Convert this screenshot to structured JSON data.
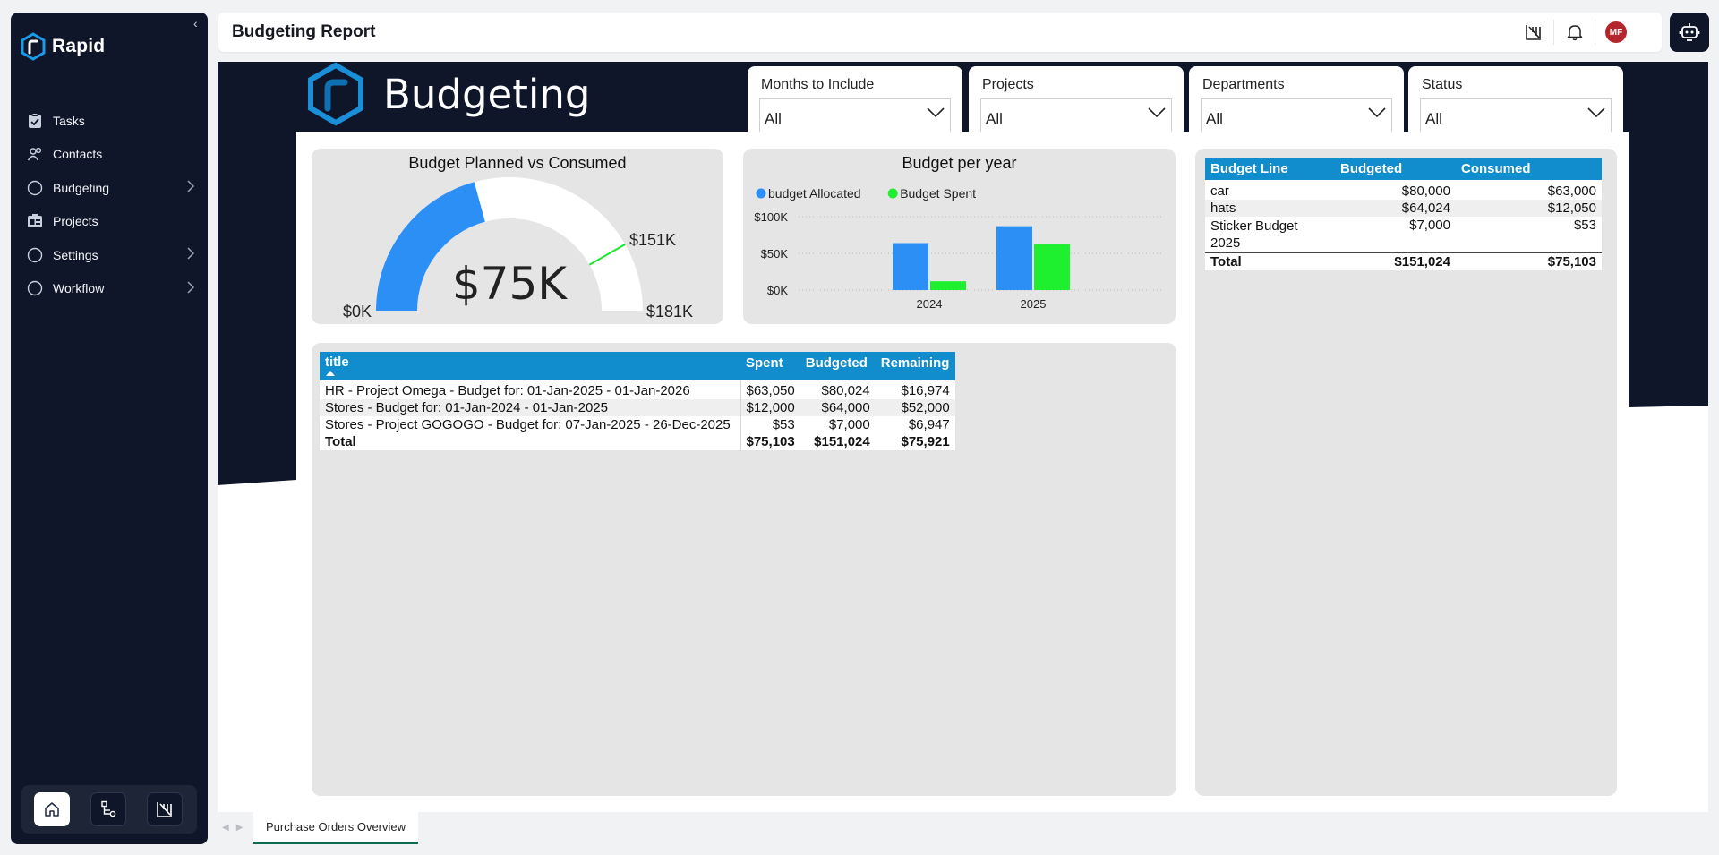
{
  "app": {
    "brand": "Rapid"
  },
  "sidebar": {
    "items": [
      {
        "label": "Tasks",
        "icon": "clipboard-icon",
        "chevron": false
      },
      {
        "label": "Contacts",
        "icon": "people-icon",
        "chevron": false
      },
      {
        "label": "Budgeting",
        "icon": "circle-icon",
        "chevron": true
      },
      {
        "label": "Projects",
        "icon": "projects-icon",
        "chevron": false
      },
      {
        "label": "Settings",
        "icon": "circle-icon",
        "chevron": true
      },
      {
        "label": "Workflow",
        "icon": "circle-icon",
        "chevron": true
      }
    ],
    "dock": [
      "home-icon",
      "flow-icon",
      "report-icon"
    ]
  },
  "header": {
    "title": "Budgeting Report",
    "avatar_initials": "MF"
  },
  "report": {
    "heading": "Budgeting",
    "slicers": [
      {
        "label": "Months to Include",
        "value": "All"
      },
      {
        "label": "Projects",
        "value": "All"
      },
      {
        "label": "Departments",
        "value": "All"
      },
      {
        "label": "Status",
        "value": "All"
      }
    ],
    "gauge": {
      "title": "Budget Planned vs Consumed",
      "value_label": "$75K",
      "min_label": "$0K",
      "max_label": "$181K",
      "target_label": "$151K",
      "value": 75103,
      "min": 0,
      "max": 181000,
      "target": 151024,
      "fill_color": "#2b8ff6"
    },
    "budget_lines": {
      "headers": [
        "Budget Line",
        "Budgeted",
        "Consumed"
      ],
      "rows": [
        {
          "line": "car",
          "budgeted": "$80,000",
          "consumed": "$63,000"
        },
        {
          "line": "hats",
          "budgeted": "$64,024",
          "consumed": "$12,050"
        },
        {
          "line": "Sticker Budget 2025",
          "budgeted": "$7,000",
          "consumed": "$53"
        }
      ],
      "total": {
        "line": "Total",
        "budgeted": "$151,024",
        "consumed": "$75,103"
      }
    },
    "projects_table": {
      "headers": [
        "title",
        "Spent",
        "Budgeted",
        "Remaining"
      ],
      "rows": [
        {
          "title": "HR - Project Omega - Budget for: 01-Jan-2025 - 01-Jan-2026",
          "spent": "$63,050",
          "budgeted": "$80,024",
          "remaining": "$16,974"
        },
        {
          "title": "Stores - Budget for: 01-Jan-2024 - 01-Jan-2025",
          "spent": "$12,000",
          "budgeted": "$64,000",
          "remaining": "$52,000"
        },
        {
          "title": "Stores - Project GOGOGO - Budget for: 07-Jan-2025 - 26-Dec-2025",
          "spent": "$53",
          "budgeted": "$7,000",
          "remaining": "$6,947"
        }
      ],
      "total": {
        "title": "Total",
        "spent": "$75,103",
        "budgeted": "$151,024",
        "remaining": "$75,921"
      }
    }
  },
  "chart_data": {
    "type": "bar",
    "title": "Budget per year",
    "categories": [
      "2024",
      "2025"
    ],
    "series": [
      {
        "name": "budget Allocated",
        "values": [
          64000,
          87024
        ],
        "color": "#2b8ff6"
      },
      {
        "name": "Budget Spent",
        "values": [
          12000,
          63103
        ],
        "color": "#1ef02f"
      }
    ],
    "yticks": [
      "$0K",
      "$50K",
      "$100K"
    ],
    "ylim": [
      0,
      100000
    ],
    "grid": true,
    "legend": "top-left"
  },
  "tabs": [
    {
      "label": "Purchase Orders Overview",
      "active": true
    }
  ]
}
